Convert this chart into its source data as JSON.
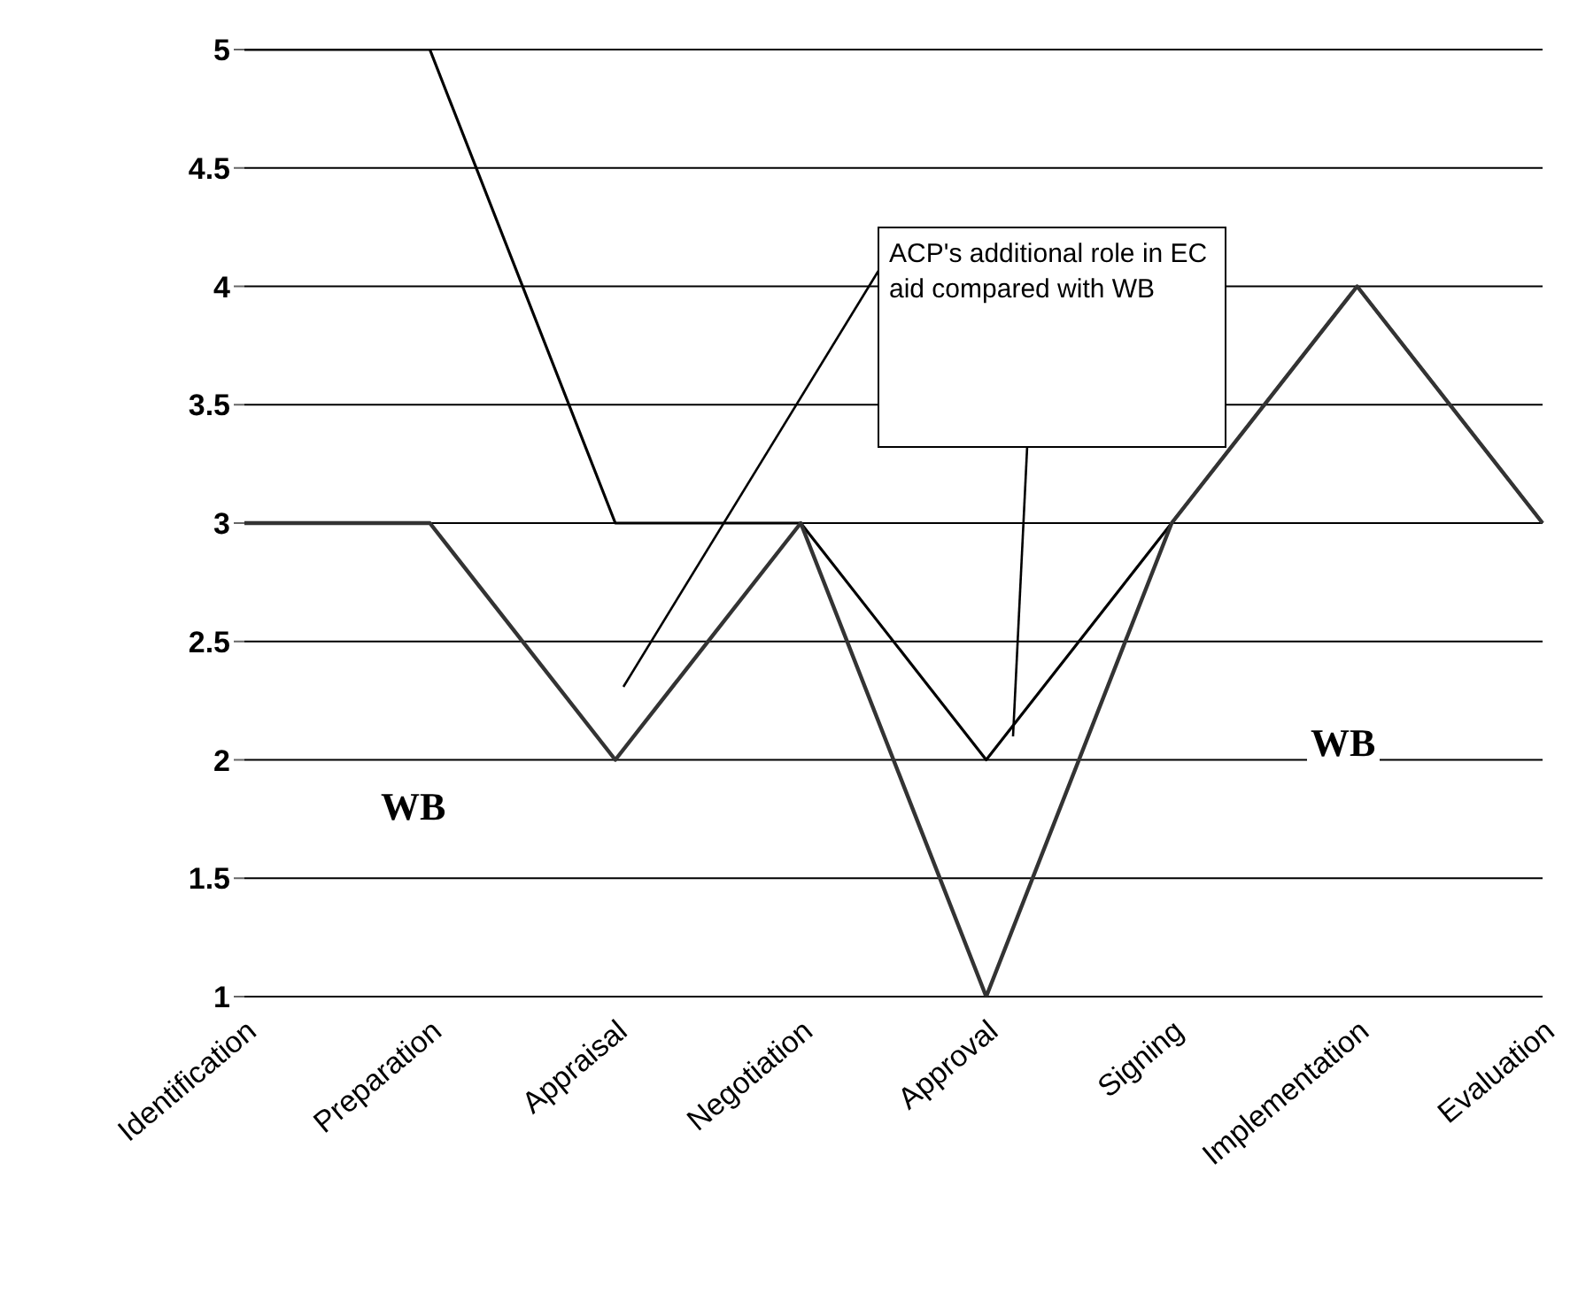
{
  "chart_data": {
    "type": "line",
    "categories": [
      "Identification",
      "Preparation",
      "Appraisal",
      "Negotiation",
      "Approval",
      "Signing",
      "Implementation",
      "Evaluation"
    ],
    "series": [
      {
        "color": "#000000",
        "values": [
          5,
          5,
          3,
          3,
          2,
          3,
          4,
          3
        ]
      },
      {
        "color": "#333333",
        "values": [
          3,
          3,
          2,
          3,
          1,
          3,
          4,
          3
        ]
      }
    ],
    "ylim": [
      1,
      5
    ],
    "yticks": [
      1,
      1.5,
      2,
      2.5,
      3,
      3.5,
      4,
      4.5,
      5
    ],
    "grid": "y",
    "marker": "none",
    "line_style": "solid",
    "legend": false,
    "annotations": [
      "WB",
      "WB",
      "ACP's additional role in EC aid compared with WB"
    ]
  }
}
